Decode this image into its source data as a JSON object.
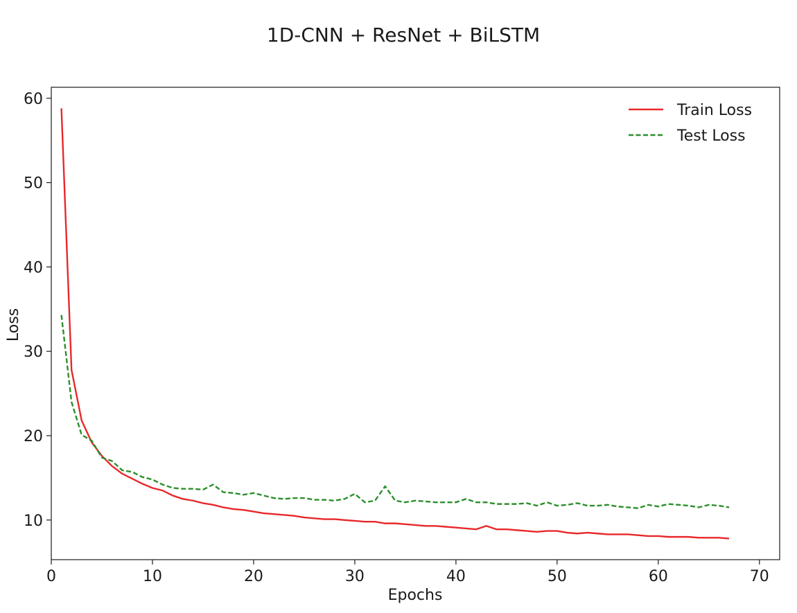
{
  "chart_data": {
    "type": "line",
    "title": "1D-CNN + ResNet + BiLSTM",
    "xlabel": "Epochs",
    "ylabel": "Loss",
    "xlim": [
      0,
      72
    ],
    "ylim": [
      5.3,
      61.3
    ],
    "xticks": [
      0,
      10,
      20,
      30,
      40,
      50,
      60,
      70
    ],
    "yticks": [
      10,
      20,
      30,
      40,
      50,
      60
    ],
    "grid": false,
    "legend_position": "top-right",
    "x": [
      1,
      2,
      3,
      4,
      5,
      6,
      7,
      8,
      9,
      10,
      11,
      12,
      13,
      14,
      15,
      16,
      17,
      18,
      19,
      20,
      21,
      22,
      23,
      24,
      25,
      26,
      27,
      28,
      29,
      30,
      31,
      32,
      33,
      34,
      35,
      36,
      37,
      38,
      39,
      40,
      41,
      42,
      43,
      44,
      45,
      46,
      47,
      48,
      49,
      50,
      51,
      52,
      53,
      54,
      55,
      56,
      57,
      58,
      59,
      60,
      61,
      62,
      63,
      64,
      65,
      66,
      67
    ],
    "series": [
      {
        "name": "Train Loss",
        "color": "#e8282b",
        "style": "solid",
        "values": [
          58.8,
          27.8,
          21.8,
          19.2,
          17.6,
          16.4,
          15.5,
          14.9,
          14.3,
          13.8,
          13.5,
          12.9,
          12.5,
          12.3,
          12.0,
          11.8,
          11.5,
          11.3,
          11.2,
          11.0,
          10.8,
          10.7,
          10.6,
          10.5,
          10.3,
          10.2,
          10.1,
          10.1,
          10.0,
          9.9,
          9.8,
          9.8,
          9.6,
          9.6,
          9.5,
          9.4,
          9.3,
          9.3,
          9.2,
          9.1,
          9.0,
          8.9,
          9.3,
          8.9,
          8.9,
          8.8,
          8.7,
          8.6,
          8.7,
          8.7,
          8.5,
          8.4,
          8.5,
          8.4,
          8.3,
          8.3,
          8.3,
          8.2,
          8.1,
          8.1,
          8.0,
          8.0,
          8.0,
          7.9,
          7.9,
          7.9,
          7.8
        ]
      },
      {
        "name": "Test Loss",
        "color": "#2a8f2a",
        "style": "dashed",
        "values": [
          34.3,
          24.0,
          20.1,
          19.4,
          17.4,
          17.0,
          15.9,
          15.7,
          15.1,
          14.8,
          14.2,
          13.8,
          13.7,
          13.7,
          13.6,
          14.2,
          13.3,
          13.2,
          13.0,
          13.2,
          12.9,
          12.6,
          12.5,
          12.6,
          12.6,
          12.4,
          12.4,
          12.3,
          12.5,
          13.1,
          12.1,
          12.3,
          14.0,
          12.3,
          12.1,
          12.3,
          12.2,
          12.1,
          12.1,
          12.1,
          12.5,
          12.1,
          12.1,
          11.9,
          11.9,
          11.9,
          12.0,
          11.7,
          12.1,
          11.7,
          11.8,
          12.0,
          11.7,
          11.7,
          11.8,
          11.6,
          11.5,
          11.4,
          11.8,
          11.6,
          11.9,
          11.8,
          11.7,
          11.5,
          11.8,
          11.7,
          11.5
        ]
      }
    ]
  }
}
